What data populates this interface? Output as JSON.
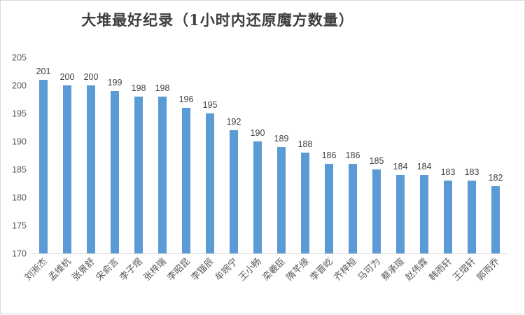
{
  "chart_data": {
    "type": "bar",
    "title": "大堆最好纪录（1小时内还原魔方数量）",
    "categories": [
      "刘淅杰",
      "孟维杭",
      "张景舒",
      "宋俞言",
      "李子煜",
      "张梓瑞",
      "李昭昆",
      "李锴辰",
      "牟婉宁",
      "王小畅",
      "栾羲臣",
      "隋芊缘",
      "李晋屹",
      "齐梓桓",
      "马可为",
      "蔡承瑄",
      "赵伟霖",
      "韩雨轩",
      "王熠轩",
      "郭雨乔"
    ],
    "values": [
      201,
      200,
      200,
      199,
      198,
      198,
      196,
      195,
      192,
      190,
      189,
      188,
      186,
      186,
      185,
      184,
      184,
      183,
      183,
      182
    ],
    "yticks": [
      170,
      175,
      180,
      185,
      190,
      195,
      200,
      205
    ],
    "ylim": [
      170,
      205
    ],
    "xlabel": "",
    "ylabel": "",
    "grid": false,
    "legend": "none",
    "bar_color": "#5b9bd5"
  }
}
